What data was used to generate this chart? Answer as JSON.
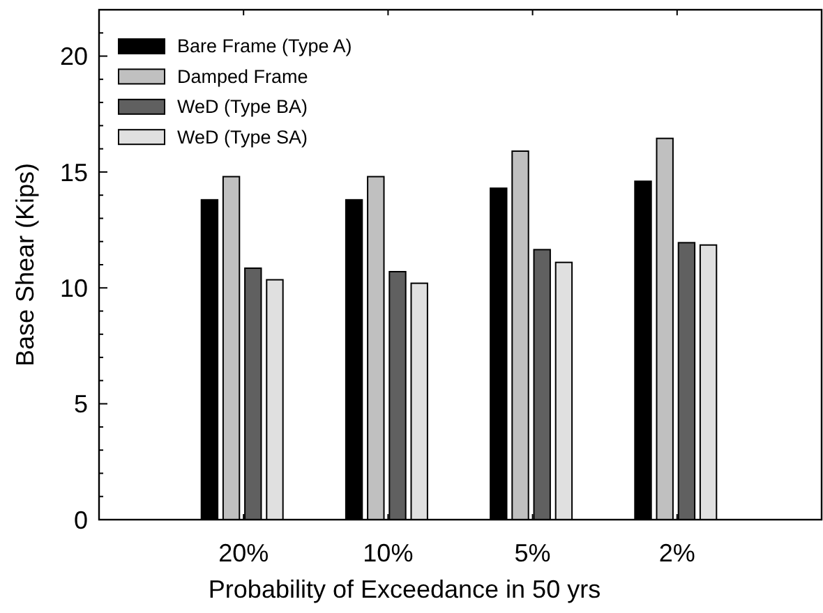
{
  "chart_data": {
    "type": "bar",
    "xlabel": "Probability of Exceedance in 50 yrs",
    "ylabel": "Base Shear (Kips)",
    "categories": [
      "20%",
      "10%",
      "5%",
      "2%"
    ],
    "series": [
      {
        "name": "Bare Frame (Type A)",
        "color": "#000000",
        "values": [
          13.8,
          13.8,
          14.3,
          14.6
        ]
      },
      {
        "name": "Damped Frame",
        "color": "#c0c0c0",
        "values": [
          14.8,
          14.8,
          15.9,
          16.45
        ]
      },
      {
        "name": "WeD (Type BA)",
        "color": "#606060",
        "values": [
          10.85,
          10.7,
          11.65,
          11.95
        ]
      },
      {
        "name": "WeD (Type SA)",
        "color": "#e0e0e0",
        "values": [
          10.35,
          10.2,
          11.1,
          11.85
        ]
      }
    ],
    "ylim": [
      0,
      22
    ],
    "yticks": [
      0,
      {
        "value": 1,
        "label": null
      },
      {
        "value": 2,
        "label": null
      },
      {
        "value": 3,
        "label": null
      },
      {
        "value": 4,
        "label": null
      },
      5,
      {
        "value": 6,
        "label": null
      },
      {
        "value": 7,
        "label": null
      },
      {
        "value": 8,
        "label": null
      },
      {
        "value": 9,
        "label": null
      },
      10,
      {
        "value": 11,
        "label": null
      },
      {
        "value": 12,
        "label": null
      },
      {
        "value": 13,
        "label": null
      },
      {
        "value": 14,
        "label": null
      },
      15,
      {
        "value": 16,
        "label": null
      },
      {
        "value": 17,
        "label": null
      },
      {
        "value": 18,
        "label": null
      },
      {
        "value": 19,
        "label": null
      },
      20,
      {
        "value": 21,
        "label": null
      },
      {
        "value": 22,
        "label": null
      }
    ],
    "grid": false,
    "legend": "top left"
  }
}
